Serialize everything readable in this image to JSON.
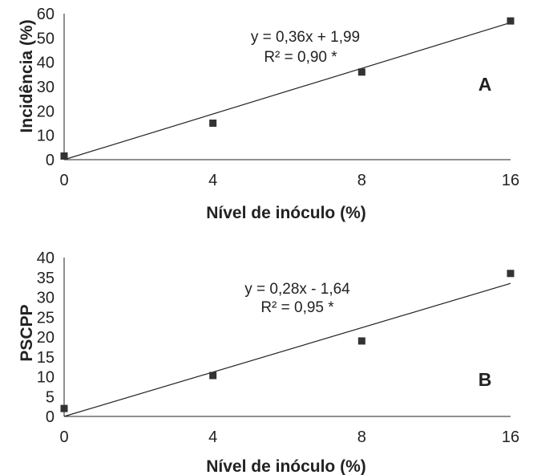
{
  "chart_data": [
    {
      "type": "scatter",
      "panel_letter": "A",
      "x_ticks": [
        "0",
        "4",
        "8",
        "16"
      ],
      "y_ticks": [
        "0",
        "10",
        "20",
        "30",
        "40",
        "50",
        "60"
      ],
      "ylim": [
        0,
        60
      ],
      "xlabel": "Nível de inóculo (%)",
      "ylabel": "Incidência (%)",
      "points": [
        {
          "x": "0",
          "y": 1.5
        },
        {
          "x": "4",
          "y": 15
        },
        {
          "x": "8",
          "y": 36
        },
        {
          "x": "16",
          "y": 57
        }
      ],
      "trendline": {
        "start": 0,
        "end": 56.3
      },
      "equation": "y = 0,36x + 1,99",
      "r2": "R² = 0,90 *",
      "grid": false
    },
    {
      "type": "scatter",
      "panel_letter": "B",
      "x_ticks": [
        "0",
        "4",
        "8",
        "16"
      ],
      "y_ticks": [
        "0",
        "5",
        "10",
        "15",
        "20",
        "25",
        "30",
        "35",
        "40"
      ],
      "ylim": [
        0,
        40
      ],
      "xlabel": "Nível de inóculo (%)",
      "ylabel": "PSCPP",
      "points": [
        {
          "x": "0",
          "y": 2
        },
        {
          "x": "4",
          "y": 10.3
        },
        {
          "x": "8",
          "y": 19
        },
        {
          "x": "16",
          "y": 36
        }
      ],
      "trendline": {
        "start": 0,
        "end": 33.5
      },
      "equation": "y = 0,28x - 1,64",
      "r2": "R² = 0,95 *",
      "grid": false
    }
  ]
}
